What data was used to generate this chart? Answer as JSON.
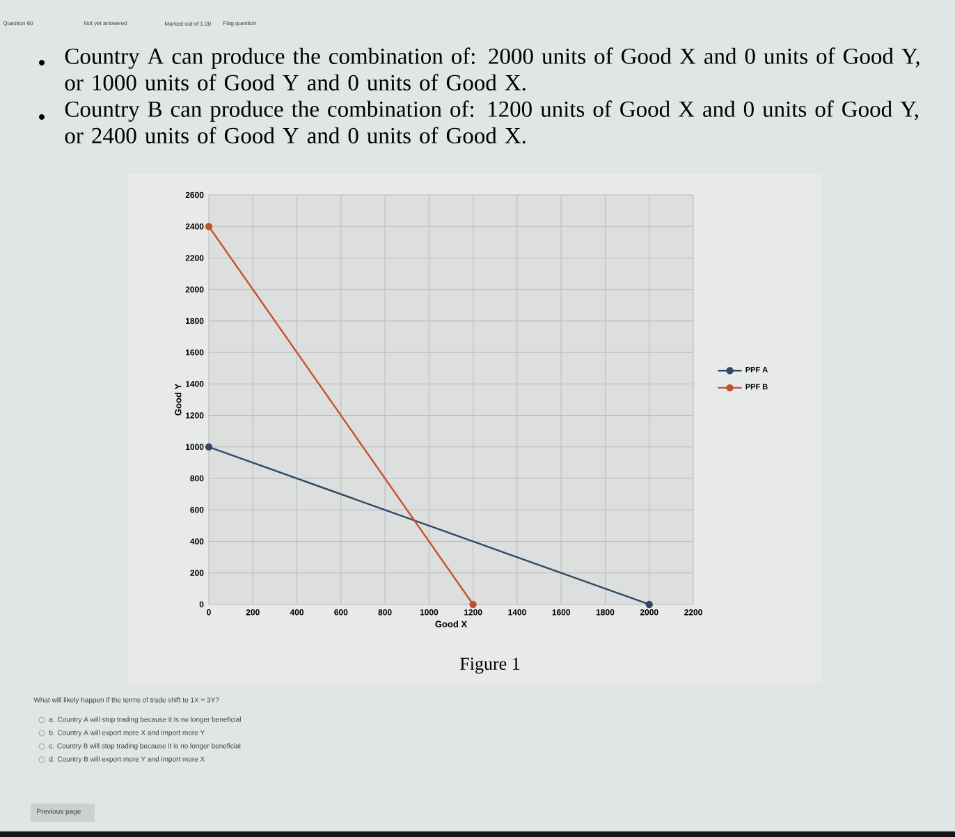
{
  "chart_data": {
    "type": "line",
    "title": "Country A can produce the combination of: 2000 units of Good X and 0 units of Good Y, or 1000 units of Good Y and 0 units of Good X.",
    "subtitle": "Country B can produce the combination of: 1200 units of Good X and 0 units of Good Y, or 2400 units of Good Y and 0 units of Good X.",
    "xlabel": "Good X",
    "ylabel": "Good Y",
    "series": [
      {
        "name": "PPF A",
        "color": "#2f4a66",
        "x": [
          0,
          2000
        ],
        "values": [
          1000,
          0
        ]
      },
      {
        "name": "PPF B",
        "color": "#c2532e",
        "x": [
          0,
          1200
        ],
        "values": [
          2400,
          0
        ]
      }
    ],
    "xlim": [
      0,
      2200
    ],
    "xticks": [
      0,
      200,
      400,
      600,
      800,
      1000,
      1200,
      1400,
      1600,
      1800,
      2000,
      2200
    ],
    "ylim": [
      0,
      2600
    ],
    "yticks": [
      0,
      200,
      400,
      600,
      800,
      1000,
      1200,
      1400,
      1600,
      1800,
      2000,
      2200,
      2400,
      2600
    ],
    "grid": true,
    "legend": "right",
    "marker": "circle",
    "line_style": "solid",
    "annotations": [
      "Question 60",
      "Not yet answered",
      "Marked out of 1.00",
      "Flag question",
      "Figure 1",
      "What will likely happen if the terms of trade shift to 1X = 3Y?",
      "a. Country A will stop trading because it is no longer beneficial",
      "b. Country A will export more X and import more Y",
      "c. Country B will stop trading because it is no longer beneficial",
      "d. Country B will export more Y and import more X",
      "Previous page"
    ]
  }
}
